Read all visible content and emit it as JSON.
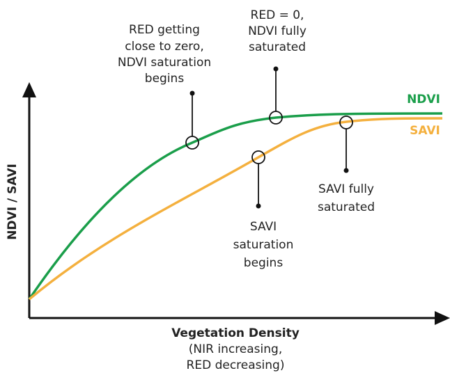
{
  "axes": {
    "x_label": [
      "Vegetation Density",
      "(NIR increasing,",
      "RED decreasing)"
    ],
    "y_label": "NDVI / SAVI"
  },
  "curves": [
    {
      "name": "NDVI",
      "color": "#1a9e4a"
    },
    {
      "name": "SAVI",
      "color": "#f4b03e"
    }
  ],
  "annotations": [
    {
      "lines": [
        "RED getting",
        "close to zero,",
        "NDVI saturation",
        "begins"
      ]
    },
    {
      "lines": [
        "RED = 0,",
        "NDVI fully",
        "saturated"
      ]
    },
    {
      "lines": [
        "SAVI",
        "saturation",
        "begins"
      ]
    },
    {
      "lines": [
        "SAVI fully",
        "saturated"
      ]
    }
  ]
}
